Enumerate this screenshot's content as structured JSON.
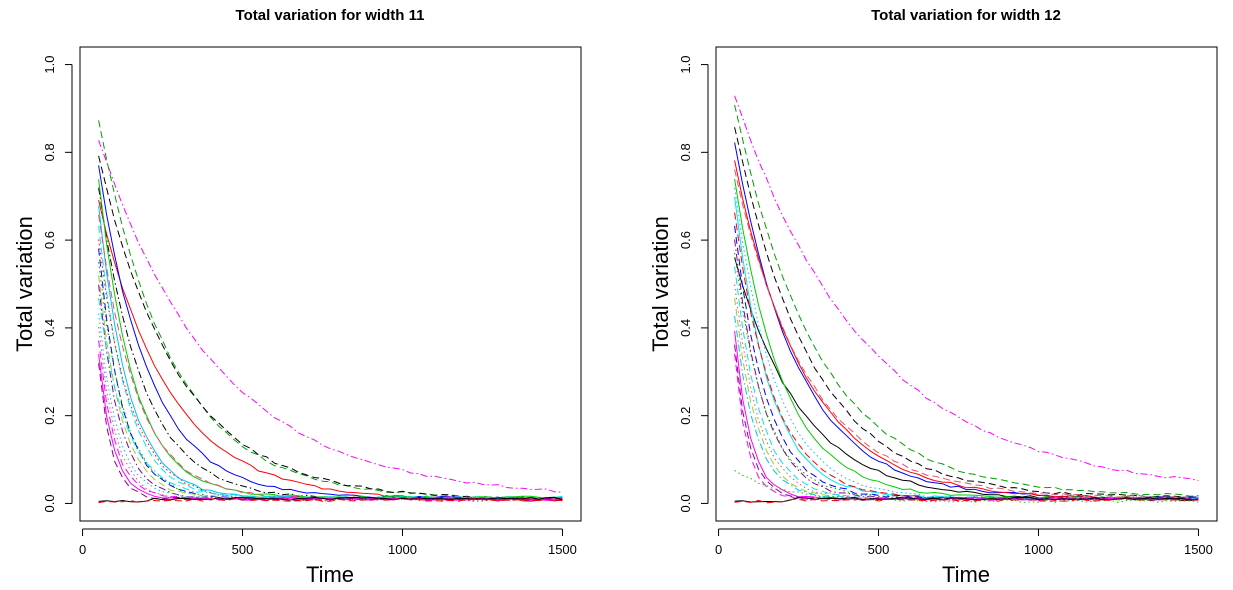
{
  "colors": {
    "palette": [
      "#000000",
      "#df536b",
      "#ff0000",
      "#00a000",
      "#00cd00",
      "#0000ff",
      "#00bfff",
      "#00e5ee",
      "#ff00ff",
      "#8b008b",
      "#9acd32"
    ],
    "frame": "#000000",
    "background": "#ffffff"
  },
  "chart_data": [
    {
      "type": "line",
      "title": "Total variation for width 11",
      "xlabel": "Time",
      "ylabel": "Total variation",
      "xlim": [
        0,
        1500
      ],
      "ylim": [
        0,
        1.0
      ],
      "xticks": [
        "0",
        "500",
        "1000",
        "1500"
      ],
      "yticks": [
        "0.0",
        "0.2",
        "0.4",
        "0.6",
        "0.8",
        "1.0"
      ],
      "grid": false,
      "legend": "none",
      "x_start": 50,
      "x_end": 1500,
      "series": [
        {
          "start": 0.83,
          "tau": 370,
          "color": "#ff00ff",
          "style": "dashdot",
          "floor": 0.012
        },
        {
          "start": 0.87,
          "tau": 230,
          "color": "#00a000",
          "style": "dashed",
          "floor": 0.01
        },
        {
          "start": 0.79,
          "tau": 250,
          "color": "#000000",
          "style": "dashed",
          "floor": 0.008
        },
        {
          "start": 0.69,
          "tau": 220,
          "color": "#ff0000",
          "style": "solid",
          "floor": 0.006
        },
        {
          "start": 0.77,
          "tau": 160,
          "color": "#0000ff",
          "style": "solid",
          "floor": 0.012
        },
        {
          "start": 0.72,
          "tau": 140,
          "color": "#000000",
          "style": "dashdot",
          "floor": 0.01
        },
        {
          "start": 0.74,
          "tau": 110,
          "color": "#00cd00",
          "style": "solid",
          "floor": 0.014
        },
        {
          "start": 0.68,
          "tau": 95,
          "color": "#00bfff",
          "style": "solid",
          "floor": 0.012
        },
        {
          "start": 0.66,
          "tau": 120,
          "color": "#df536b",
          "style": "dashed",
          "floor": 0.01
        },
        {
          "start": 0.63,
          "tau": 90,
          "color": "#00e5ee",
          "style": "dashed",
          "floor": 0.012
        },
        {
          "start": 0.6,
          "tau": 100,
          "color": "#ff0000",
          "style": "dotted",
          "floor": 0.008
        },
        {
          "start": 0.58,
          "tau": 75,
          "color": "#0000ff",
          "style": "dashed",
          "floor": 0.012
        },
        {
          "start": 0.55,
          "tau": 80,
          "color": "#00a000",
          "style": "dotted",
          "floor": 0.01
        },
        {
          "start": 0.52,
          "tau": 70,
          "color": "#9acd32",
          "style": "dashed",
          "floor": 0.012
        },
        {
          "start": 0.5,
          "tau": 65,
          "color": "#8b008b",
          "style": "dashdot",
          "floor": 0.01
        },
        {
          "start": 0.47,
          "tau": 85,
          "color": "#00e5ee",
          "style": "dashdot",
          "floor": 0.014
        },
        {
          "start": 0.43,
          "tau": 60,
          "color": "#00bfff",
          "style": "dotted",
          "floor": 0.012
        },
        {
          "start": 0.4,
          "tau": 55,
          "color": "#df536b",
          "style": "dotted",
          "floor": 0.01
        },
        {
          "start": 0.37,
          "tau": 50,
          "color": "#ff00ff",
          "style": "dashed",
          "floor": 0.012
        },
        {
          "start": 0.34,
          "tau": 45,
          "color": "#ff00ff",
          "style": "solid",
          "floor": 0.01
        },
        {
          "start": 0.32,
          "tau": 40,
          "color": "#8b008b",
          "style": "dashed",
          "floor": 0.01
        },
        {
          "start": 0.006,
          "tau": 0,
          "color": "#000000",
          "style": "solid",
          "floor": 0.006
        },
        {
          "start": 0.004,
          "tau": 0,
          "color": "#ff0000",
          "style": "dashed",
          "floor": 0.005
        }
      ]
    },
    {
      "type": "line",
      "title": "Total variation for width 12",
      "xlabel": "Time",
      "ylabel": "Total variation",
      "xlim": [
        0,
        1500
      ],
      "ylim": [
        0,
        1.0
      ],
      "xticks": [
        "0",
        "500",
        "1000",
        "1500"
      ],
      "yticks": [
        "0.0",
        "0.2",
        "0.4",
        "0.6",
        "0.8",
        "1.0"
      ],
      "grid": false,
      "legend": "none",
      "x_start": 50,
      "x_end": 1500,
      "series": [
        {
          "start": 0.93,
          "tau": 420,
          "color": "#ff00ff",
          "style": "dashdot",
          "floor": 0.025
        },
        {
          "start": 0.91,
          "tau": 260,
          "color": "#00a000",
          "style": "dashed",
          "floor": 0.015
        },
        {
          "start": 0.86,
          "tau": 240,
          "color": "#000000",
          "style": "dashed",
          "floor": 0.012
        },
        {
          "start": 0.82,
          "tau": 200,
          "color": "#0000ff",
          "style": "solid",
          "floor": 0.012
        },
        {
          "start": 0.78,
          "tau": 220,
          "color": "#ff0000",
          "style": "solid",
          "floor": 0.01
        },
        {
          "start": 0.76,
          "tau": 230,
          "color": "#df536b",
          "style": "dashed",
          "floor": 0.012
        },
        {
          "start": 0.56,
          "tau": 210,
          "color": "#000000",
          "style": "solid",
          "floor": 0.008
        },
        {
          "start": 0.74,
          "tau": 150,
          "color": "#00cd00",
          "style": "solid",
          "floor": 0.012
        },
        {
          "start": 0.72,
          "tau": 130,
          "color": "#00bfff",
          "style": "dotted",
          "floor": 0.01
        },
        {
          "start": 0.7,
          "tau": 110,
          "color": "#00e5ee",
          "style": "solid",
          "floor": 0.012
        },
        {
          "start": 0.66,
          "tau": 120,
          "color": "#ff0000",
          "style": "dashed",
          "floor": 0.01
        },
        {
          "start": 0.63,
          "tau": 100,
          "color": "#0000ff",
          "style": "dashed",
          "floor": 0.012
        },
        {
          "start": 0.6,
          "tau": 90,
          "color": "#8b008b",
          "style": "dashdot",
          "floor": 0.01
        },
        {
          "start": 0.57,
          "tau": 95,
          "color": "#00a000",
          "style": "dotted",
          "floor": 0.012
        },
        {
          "start": 0.54,
          "tau": 80,
          "color": "#00e5ee",
          "style": "dashed",
          "floor": 0.01
        },
        {
          "start": 0.5,
          "tau": 75,
          "color": "#df536b",
          "style": "dotted",
          "floor": 0.012
        },
        {
          "start": 0.47,
          "tau": 70,
          "color": "#9acd32",
          "style": "dashed",
          "floor": 0.01
        },
        {
          "start": 0.43,
          "tau": 65,
          "color": "#00bfff",
          "style": "dashdot",
          "floor": 0.012
        },
        {
          "start": 0.39,
          "tau": 50,
          "color": "#ff00ff",
          "style": "solid",
          "floor": 0.01
        },
        {
          "start": 0.36,
          "tau": 45,
          "color": "#8b008b",
          "style": "dashed",
          "floor": 0.012
        },
        {
          "start": 0.34,
          "tau": 40,
          "color": "#ff00ff",
          "style": "dashed",
          "floor": 0.01
        },
        {
          "start": 0.075,
          "tau": 150,
          "color": "#00cd00",
          "style": "dotted",
          "floor": 0.005
        },
        {
          "start": 0.006,
          "tau": 0,
          "color": "#000000",
          "style": "solid",
          "floor": 0.006
        },
        {
          "start": 0.004,
          "tau": 0,
          "color": "#ff0000",
          "style": "dashed",
          "floor": 0.005
        }
      ]
    }
  ]
}
